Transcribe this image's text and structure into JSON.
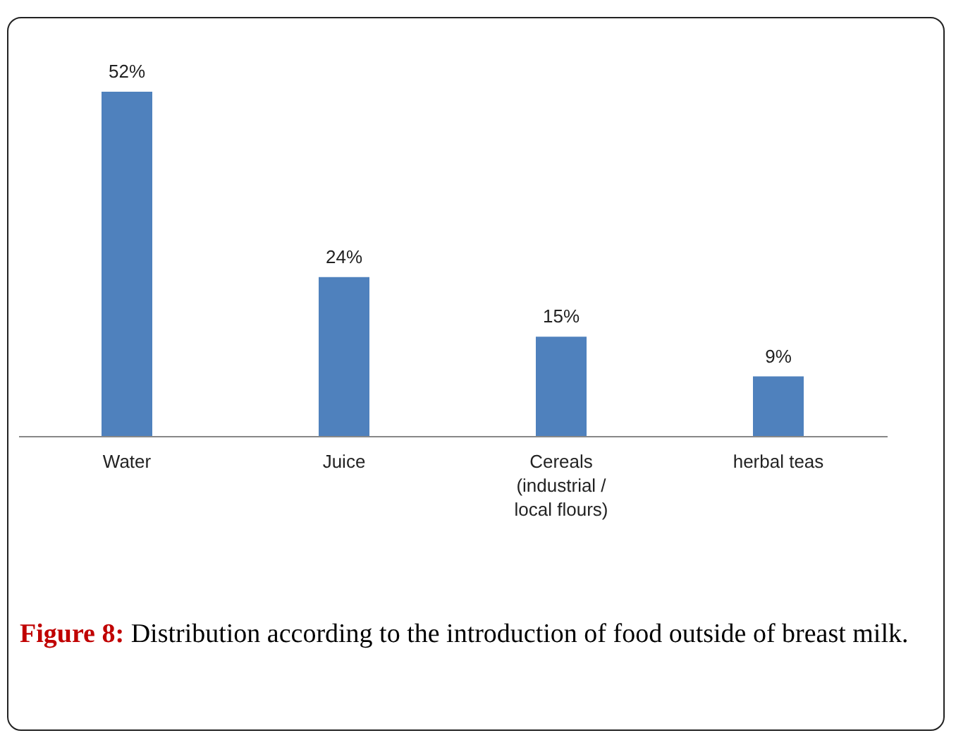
{
  "chart_data": {
    "type": "bar",
    "categories": [
      "Water",
      "Juice",
      "Cereals (industrial / local flours)",
      "herbal teas"
    ],
    "values": [
      52,
      24,
      15,
      9
    ],
    "value_labels": [
      "52%",
      "24%",
      "15%",
      "9%"
    ],
    "color": "#4f81bd",
    "annotations": [
      "Figure 8: Distribution according to the introduction of food outside of breast milk."
    ]
  }
}
